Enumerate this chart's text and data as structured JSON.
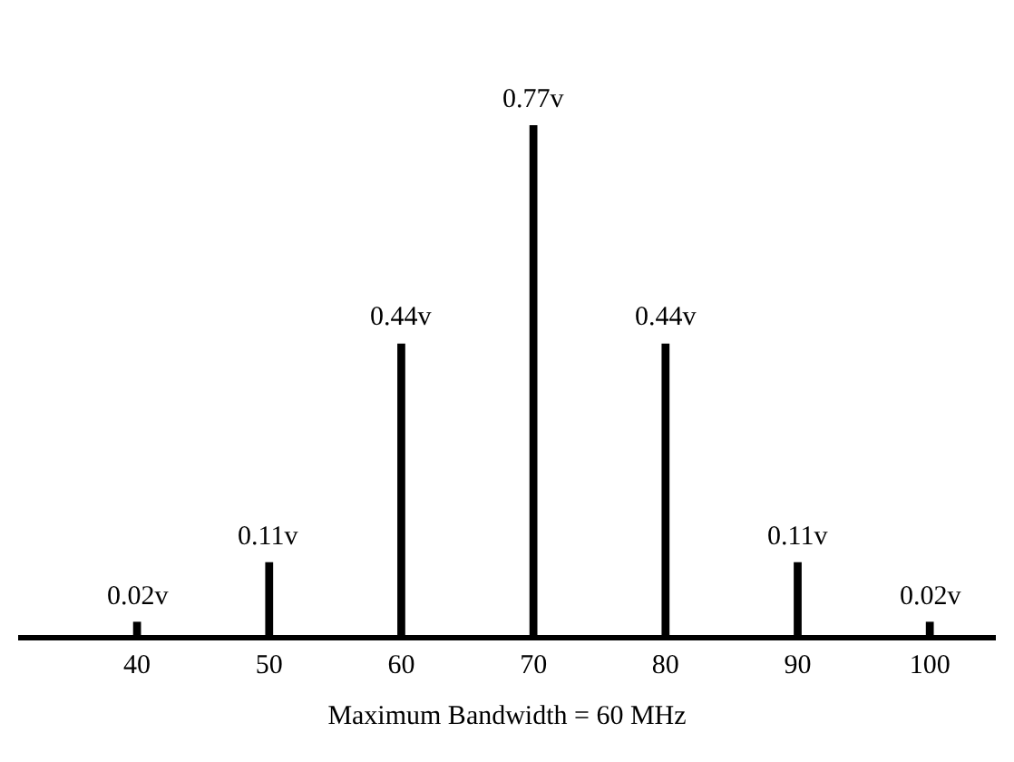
{
  "chart_data": {
    "type": "bar",
    "xlabel": "Maximum Bandwidth = 60 MHz",
    "categories": [
      "40",
      "50",
      "60",
      "70",
      "80",
      "90",
      "100"
    ],
    "values": [
      0.02,
      0.11,
      0.44,
      0.77,
      0.44,
      0.11,
      0.02
    ],
    "value_labels": [
      "0.02v",
      "0.11v",
      "0.44v",
      "0.77v",
      "0.44v",
      "0.11v",
      "0.02v"
    ],
    "color": "#000000",
    "tick_labels": "x"
  }
}
